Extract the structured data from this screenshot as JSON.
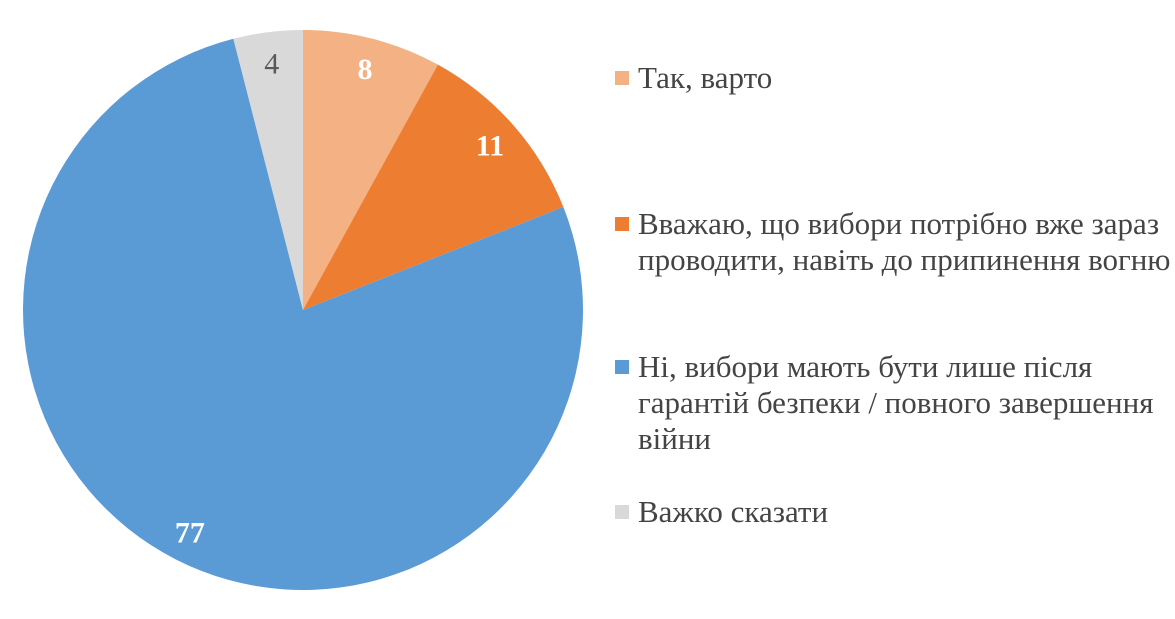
{
  "background_color": "#FFFFFF",
  "legend_text_color": "#444444",
  "chart_data": {
    "type": "pie",
    "title": "",
    "start_angle_deg": 0,
    "direction": "clockwise",
    "legend_position": "right",
    "data_labels": "values-inside-slices",
    "total": 100,
    "slices": [
      {
        "label": "Так, варто",
        "value": 8,
        "color": "#F4B183",
        "value_label_color": "#FFFFFF",
        "value_label_bold": true
      },
      {
        "label": "Вважаю, що вибори потрібно вже зараз\nпроводити, навіть до припинення вогню",
        "value": 11,
        "color": "#ED7D31",
        "value_label_color": "#FFFFFF",
        "value_label_bold": true
      },
      {
        "label": "Ні, вибори мають бути лише після\nгарантій безпеки / повного завершення\nвійни",
        "value": 77,
        "color": "#5B9BD5",
        "value_label_color": "#FFFFFF",
        "value_label_bold": true
      },
      {
        "label": "Важко сказати",
        "value": 4,
        "color": "#D9D9D9",
        "value_label_color": "#595959",
        "value_label_bold": false
      }
    ]
  }
}
